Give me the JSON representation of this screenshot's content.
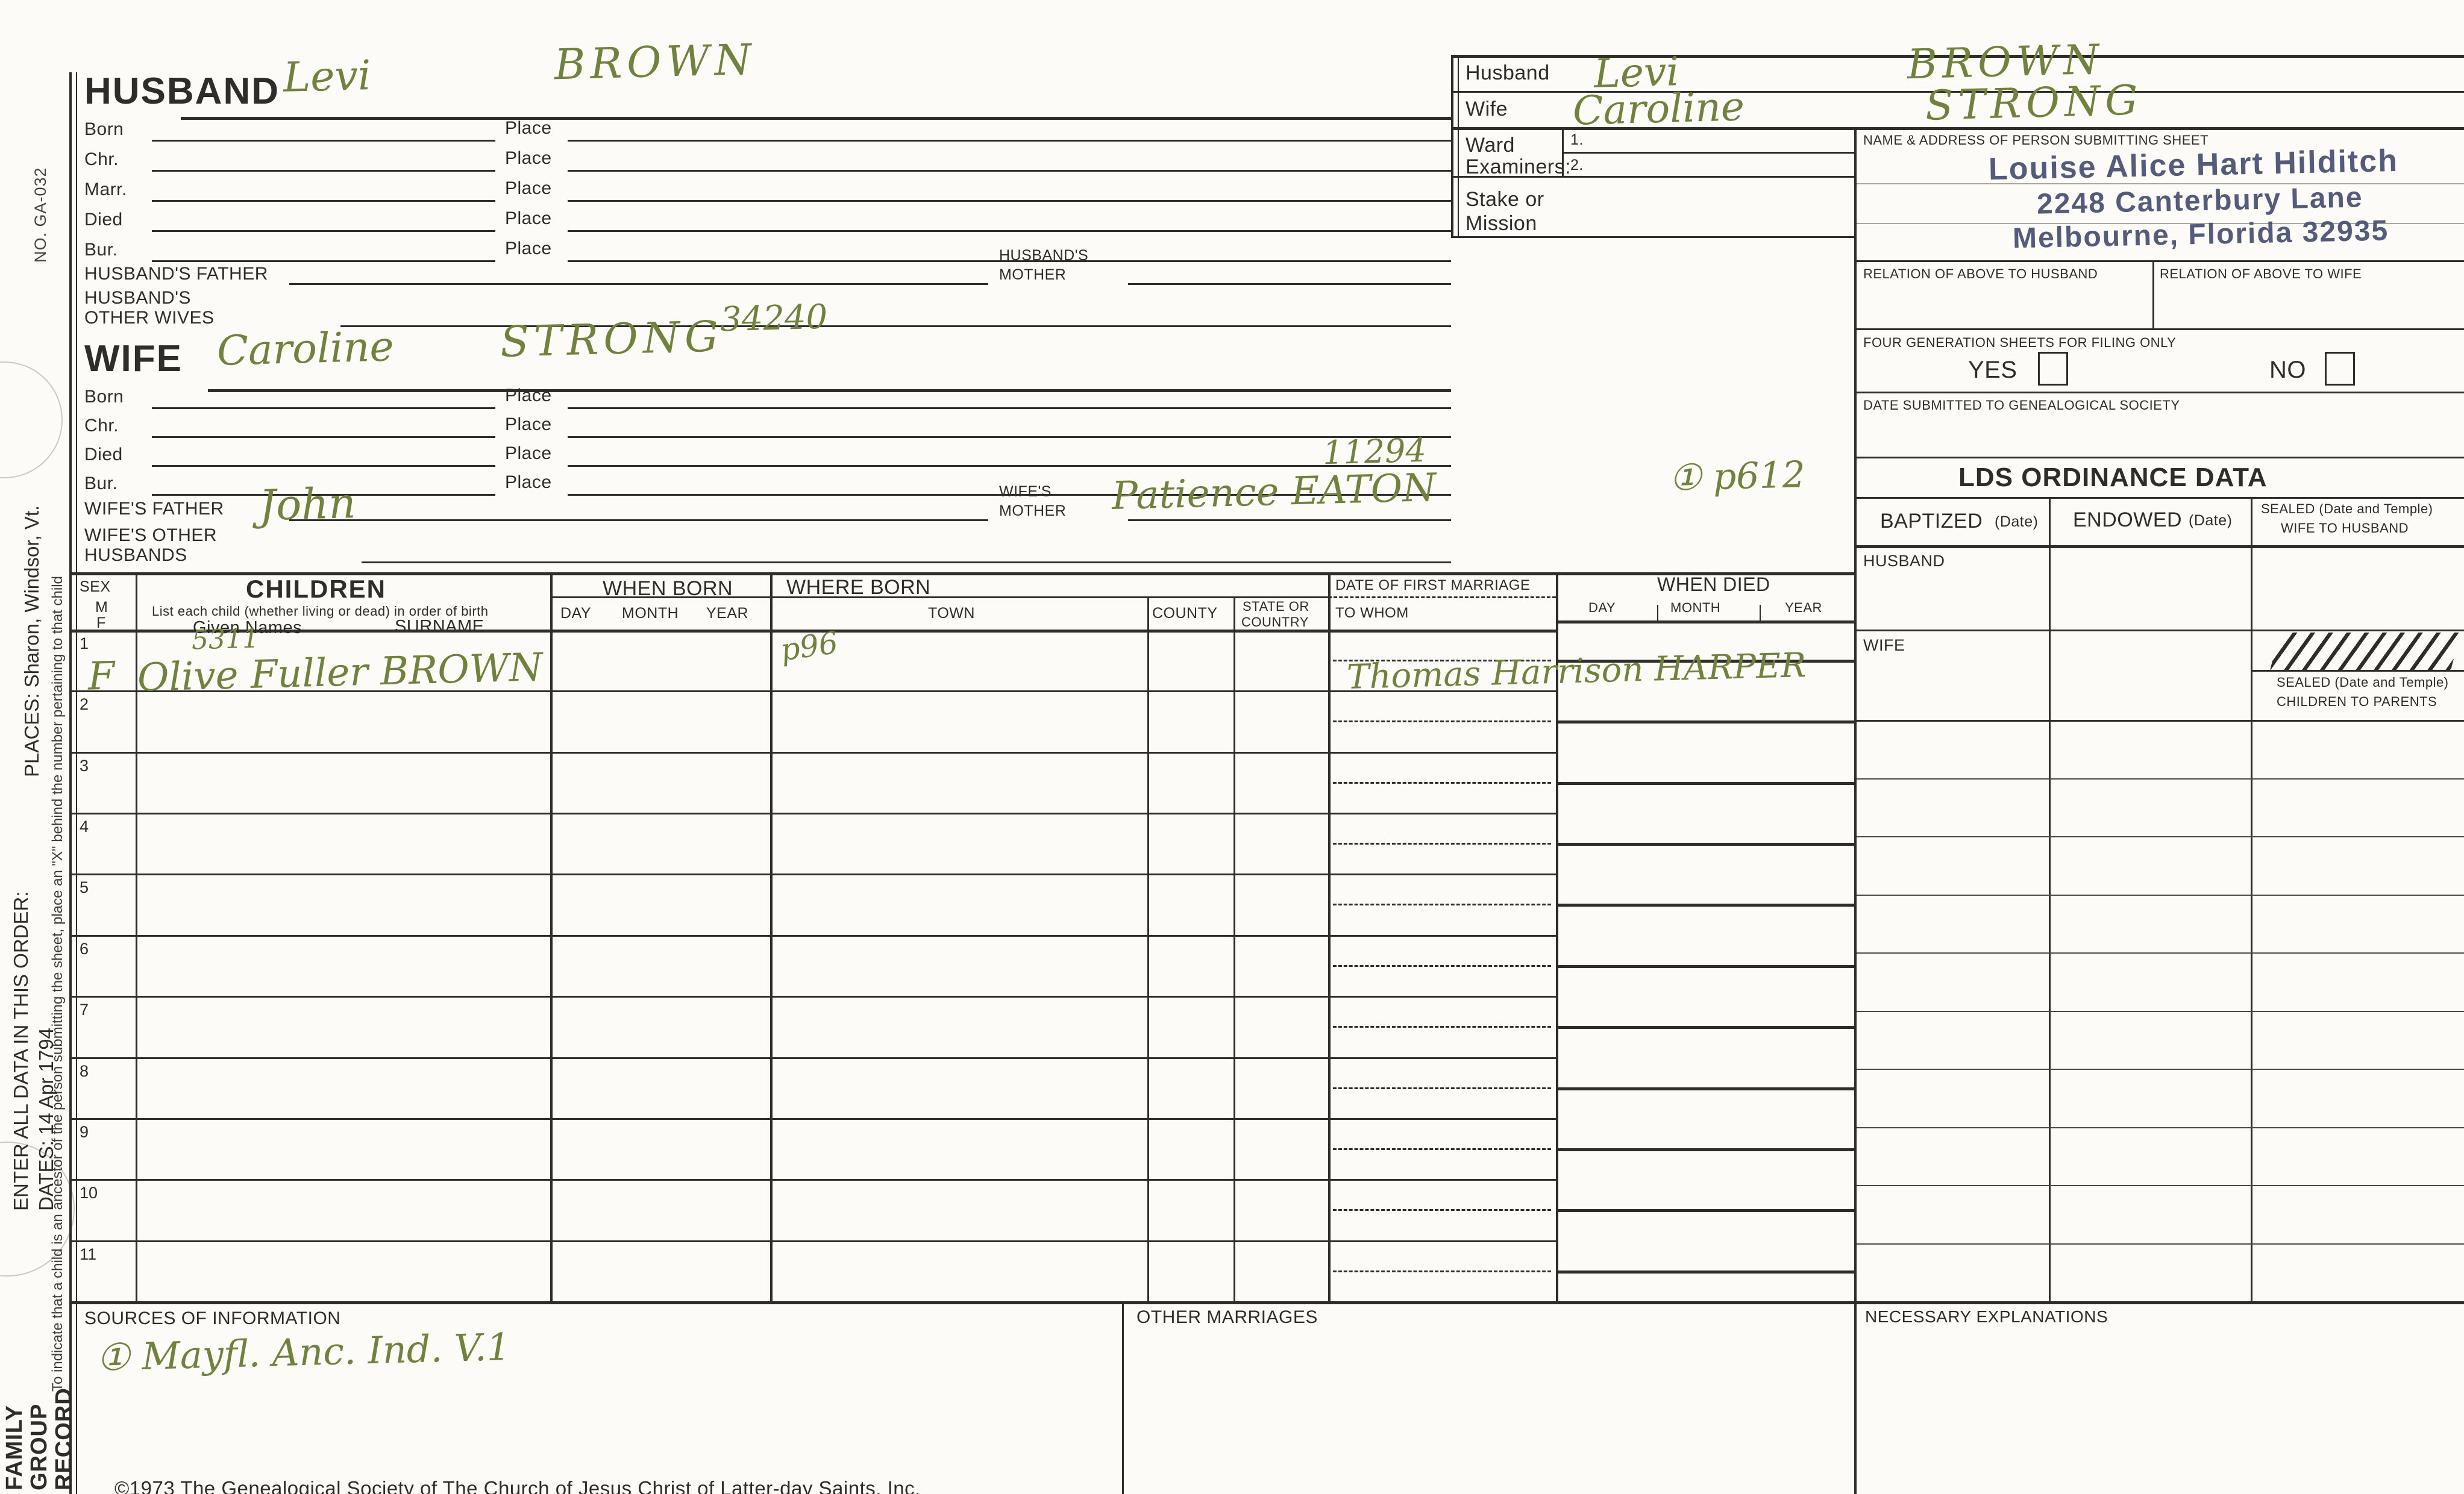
{
  "sidebar": {
    "form_no": "NO. GA-032",
    "places_note": "PLACES: Sharon, Windsor, Vt.",
    "child_x_note": "To indicate that a child is an ancestor of the person submitting the sheet, place an \"X\" behind the number pertaining to that child",
    "order_note_line1": "ENTER ALL DATA IN THIS ORDER:",
    "order_note_line2": "DATES: 14 Apr 1794",
    "record_title_line1": "FAMILY",
    "record_title_line2": "GROUP",
    "record_title_line3": "RECORD"
  },
  "husband": {
    "title": "HUSBAND",
    "given": "Levi",
    "surname": "BROWN",
    "row_labels": [
      "Born",
      "Chr.",
      "Marr.",
      "Died",
      "Bur."
    ],
    "place_label": "Place",
    "father_label": "HUSBAND'S FATHER",
    "mother_label_1": "HUSBAND'S",
    "mother_label_2": "MOTHER",
    "other_wives_1": "HUSBAND'S",
    "other_wives_2": "OTHER WIVES"
  },
  "wife": {
    "title": "WIFE",
    "given": "Caroline",
    "surname": "STRONG",
    "number": "34240",
    "row_labels": [
      "Born",
      "Chr.",
      "Died",
      "Bur."
    ],
    "place_label": "Place",
    "father_label": "WIFE'S FATHER",
    "father_value": "John",
    "mother_label_1": "WIFE'S",
    "mother_label_2": "MOTHER",
    "mother_value": "Patience EATON",
    "mother_number": "11294",
    "mother_ref": "① p612",
    "other_husbands_1": "WIFE'S OTHER",
    "other_husbands_2": "HUSBANDS"
  },
  "top_right": {
    "husband_label": "Husband",
    "husband_given": "Levi",
    "husband_surname": "BROWN",
    "wife_label": "Wife",
    "wife_given": "Caroline",
    "wife_surname": "STRONG",
    "ward_label": "Ward",
    "examiners_label": "Examiners:",
    "examiner_1": "1.",
    "examiner_2": "2.",
    "stake_label_1": "Stake or",
    "stake_label_2": "Mission"
  },
  "submitter": {
    "header": "NAME & ADDRESS OF PERSON SUBMITTING SHEET",
    "name": "Louise Alice Hart Hilditch",
    "address_line1": "2248 Canterbury Lane",
    "address_line2": "Melbourne, Florida 32935"
  },
  "relation": {
    "to_husband": "RELATION OF ABOVE TO HUSBAND",
    "to_wife": "RELATION OF ABOVE TO WIFE"
  },
  "four_generation": {
    "label": "FOUR GENERATION SHEETS FOR FILING ONLY",
    "yes": "YES",
    "no": "NO"
  },
  "date_submitted_label": "DATE SUBMITTED TO GENEALOGICAL SOCIETY",
  "lds": {
    "title": "LDS ORDINANCE DATA",
    "baptized": "BAPTIZED",
    "baptized_sub": "(Date)",
    "endowed": "ENDOWED",
    "endowed_sub": "(Date)",
    "sealed_wife_1": "SEALED (Date and Temple)",
    "sealed_wife_2": "WIFE TO HUSBAND",
    "husband_row": "HUSBAND",
    "wife_row": "WIFE",
    "sealed_children_1": "SEALED (Date and Temple)",
    "sealed_children_2": "CHILDREN TO PARENTS"
  },
  "children": {
    "sex": "SEX",
    "m": "M",
    "f": "F",
    "title": "CHILDREN",
    "subtitle": "List each child (whether living or dead) in order of birth",
    "given_names": "Given Names",
    "surname": "SURNAME",
    "when_born": "WHEN BORN",
    "day": "DAY",
    "month": "MONTH",
    "year": "YEAR",
    "where_born": "WHERE BORN",
    "town": "TOWN",
    "county": "COUNTY",
    "state_1": "STATE OR",
    "state_2": "COUNTRY",
    "first_marriage": "DATE OF FIRST MARRIAGE",
    "to_whom": "TO WHOM",
    "when_died": "WHEN DIED",
    "row_numbers": [
      "1",
      "2",
      "3",
      "4",
      "5",
      "6",
      "7",
      "8",
      "9",
      "10",
      "11"
    ],
    "row1": {
      "sex": "F",
      "ref": "5311",
      "name": "Olive Fuller BROWN",
      "town_note": "p96",
      "married_to": "Thomas Harrison HARPER"
    }
  },
  "footer": {
    "sources_label": "SOURCES OF INFORMATION",
    "sources_value": "① Mayfl. Anc. Ind. V.1",
    "other_marriages": "OTHER MARRIAGES",
    "necessary_explanations": "NECESSARY EXPLANATIONS",
    "copyright": "©1973 The Genealogical Society of The Church of Jesus Christ of Latter-day Saints, Inc."
  },
  "colors": {
    "ink": "#2e2d29",
    "handwriting": "#71813e",
    "stamp": "#4d5374",
    "paper": "#fcfbf7"
  }
}
